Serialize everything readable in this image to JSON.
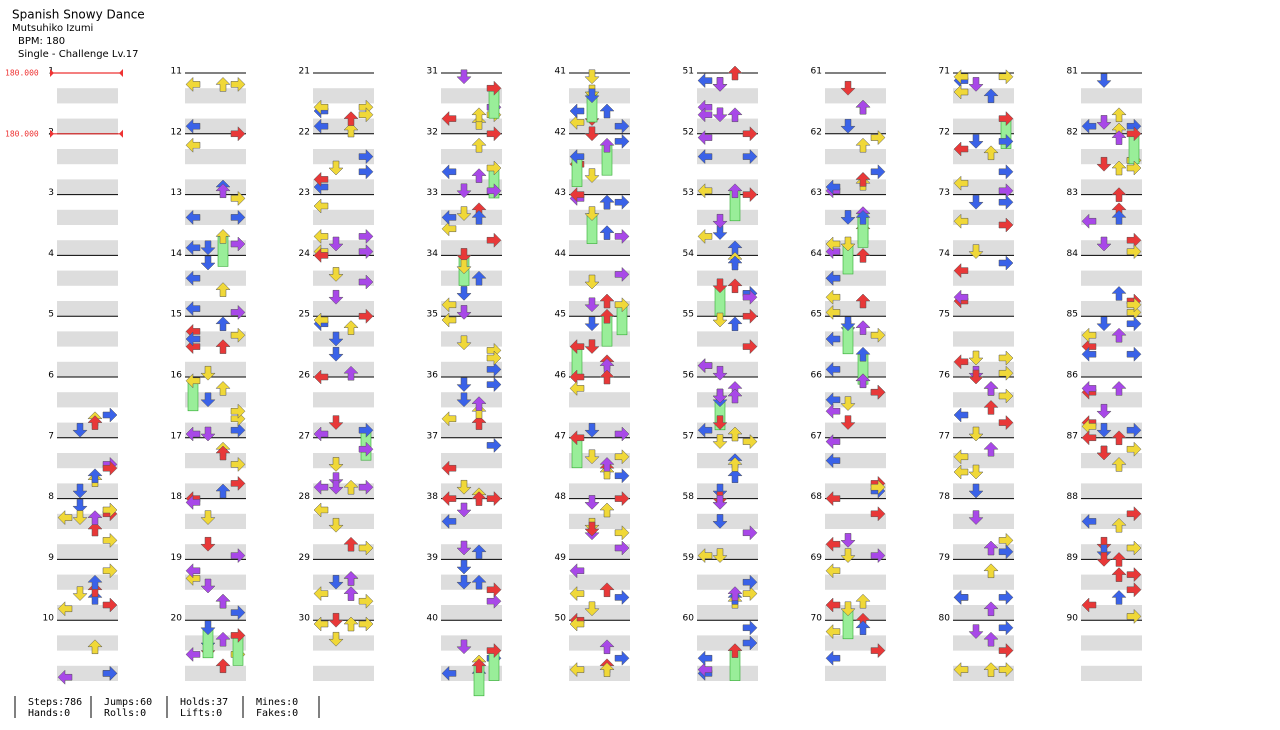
{
  "header": {
    "title": "Spanish Snowy Dance",
    "artist": "Mutsuhiko Izumi",
    "bpm": "BPM: 180",
    "difficulty": "Single - Challenge  Lv.17"
  },
  "bpm_changes": [
    {
      "measure": 1,
      "label": "180.000"
    },
    {
      "measure": 2,
      "label": "180.000"
    }
  ],
  "measure_numbers": [
    1,
    2,
    3,
    4,
    5,
    6,
    7,
    8,
    9,
    10,
    11,
    12,
    13,
    14,
    15,
    16,
    17,
    18,
    19,
    20,
    21,
    22,
    23,
    24,
    25,
    26,
    27,
    28,
    29,
    30,
    31,
    32,
    33,
    34,
    35,
    36,
    37,
    38,
    39,
    40,
    41,
    42,
    43,
    44,
    45,
    46,
    47,
    48,
    49,
    50,
    51,
    52,
    53,
    54,
    55,
    56,
    57,
    58,
    59,
    60,
    61,
    62,
    63,
    64,
    65,
    66,
    67,
    68,
    69,
    70,
    71,
    72,
    73,
    74,
    75,
    76,
    77,
    78,
    79,
    80,
    81,
    82,
    83,
    84,
    85,
    86,
    87,
    88,
    89,
    90
  ],
  "stats": [
    [
      "Steps:786",
      "Hands:0"
    ],
    [
      "Jumps:60",
      "Rolls:0"
    ],
    [
      "Holds:37",
      "Lifts:0"
    ],
    [
      "Mines:0",
      "Fakes:0"
    ]
  ]
}
